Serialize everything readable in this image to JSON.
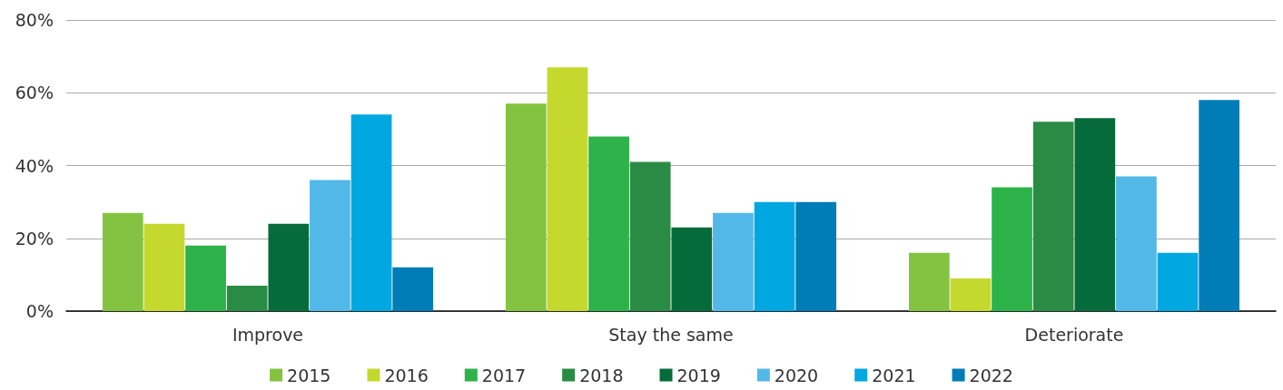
{
  "chart_data": {
    "type": "bar",
    "categories": [
      "Improve",
      "Stay the same",
      "Deteriorate"
    ],
    "series": [
      {
        "name": "2015",
        "color": "#84c341",
        "values": [
          27,
          57,
          16
        ]
      },
      {
        "name": "2016",
        "color": "#c4d82e",
        "values": [
          24,
          67,
          9
        ]
      },
      {
        "name": "2017",
        "color": "#2db34a",
        "values": [
          18,
          48,
          34
        ]
      },
      {
        "name": "2018",
        "color": "#2a8c44",
        "values": [
          7,
          41,
          52
        ]
      },
      {
        "name": "2019",
        "color": "#066b3a",
        "values": [
          24,
          23,
          53
        ]
      },
      {
        "name": "2020",
        "color": "#52b8e8",
        "values": [
          36,
          27,
          37
        ]
      },
      {
        "name": "2021",
        "color": "#00a7e1",
        "values": [
          54,
          30,
          16
        ]
      },
      {
        "name": "2022",
        "color": "#007cb6",
        "values": [
          12,
          30,
          58
        ]
      }
    ],
    "ylim": [
      0,
      80
    ],
    "yticks": [
      {
        "value": 0,
        "label": "0%"
      },
      {
        "value": 20,
        "label": "20%"
      },
      {
        "value": 40,
        "label": "40%"
      },
      {
        "value": 60,
        "label": "60%"
      },
      {
        "value": 80,
        "label": "80%"
      }
    ],
    "grid": "y",
    "legend": "bottom"
  }
}
